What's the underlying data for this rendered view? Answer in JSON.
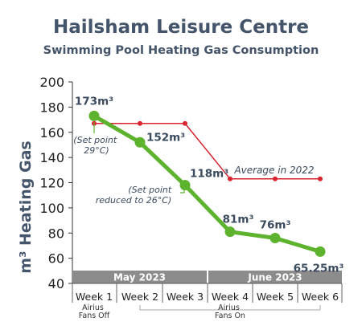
{
  "chart_data": {
    "type": "line",
    "title": "Hailsham Leisure Centre",
    "subtitle": "Swimming Pool Heating Gas Consumption",
    "ylabel": "m³ Heating Gas",
    "xlabel": "",
    "ylim": [
      40,
      200
    ],
    "yticks": [
      40,
      60,
      80,
      100,
      120,
      140,
      160,
      180,
      200
    ],
    "categories": [
      "Week 1",
      "Week 2",
      "Week 3",
      "Week 4",
      "Week 5",
      "Week 6"
    ],
    "month_bands": [
      "May 2023",
      "June 2023"
    ],
    "series": [
      {
        "name": "",
        "color": "#5db32e",
        "values": [
          173,
          152,
          118,
          81,
          76,
          65.25
        ],
        "labels": [
          "173m³",
          "152m³",
          "118m³",
          "81m³",
          "76m³",
          "65.25m³"
        ]
      },
      {
        "name": "Average in 2022",
        "color": "#d9232e",
        "values": [
          167,
          167,
          167,
          123,
          123,
          123
        ]
      }
    ],
    "annotations": [
      "(Set point 29°C)",
      "(Set point reduced to 26°C)",
      "Average in 2022"
    ],
    "footnotes": [
      "Airius Fans Off",
      "Airius Fans On"
    ],
    "grid": false,
    "legend": "none"
  }
}
